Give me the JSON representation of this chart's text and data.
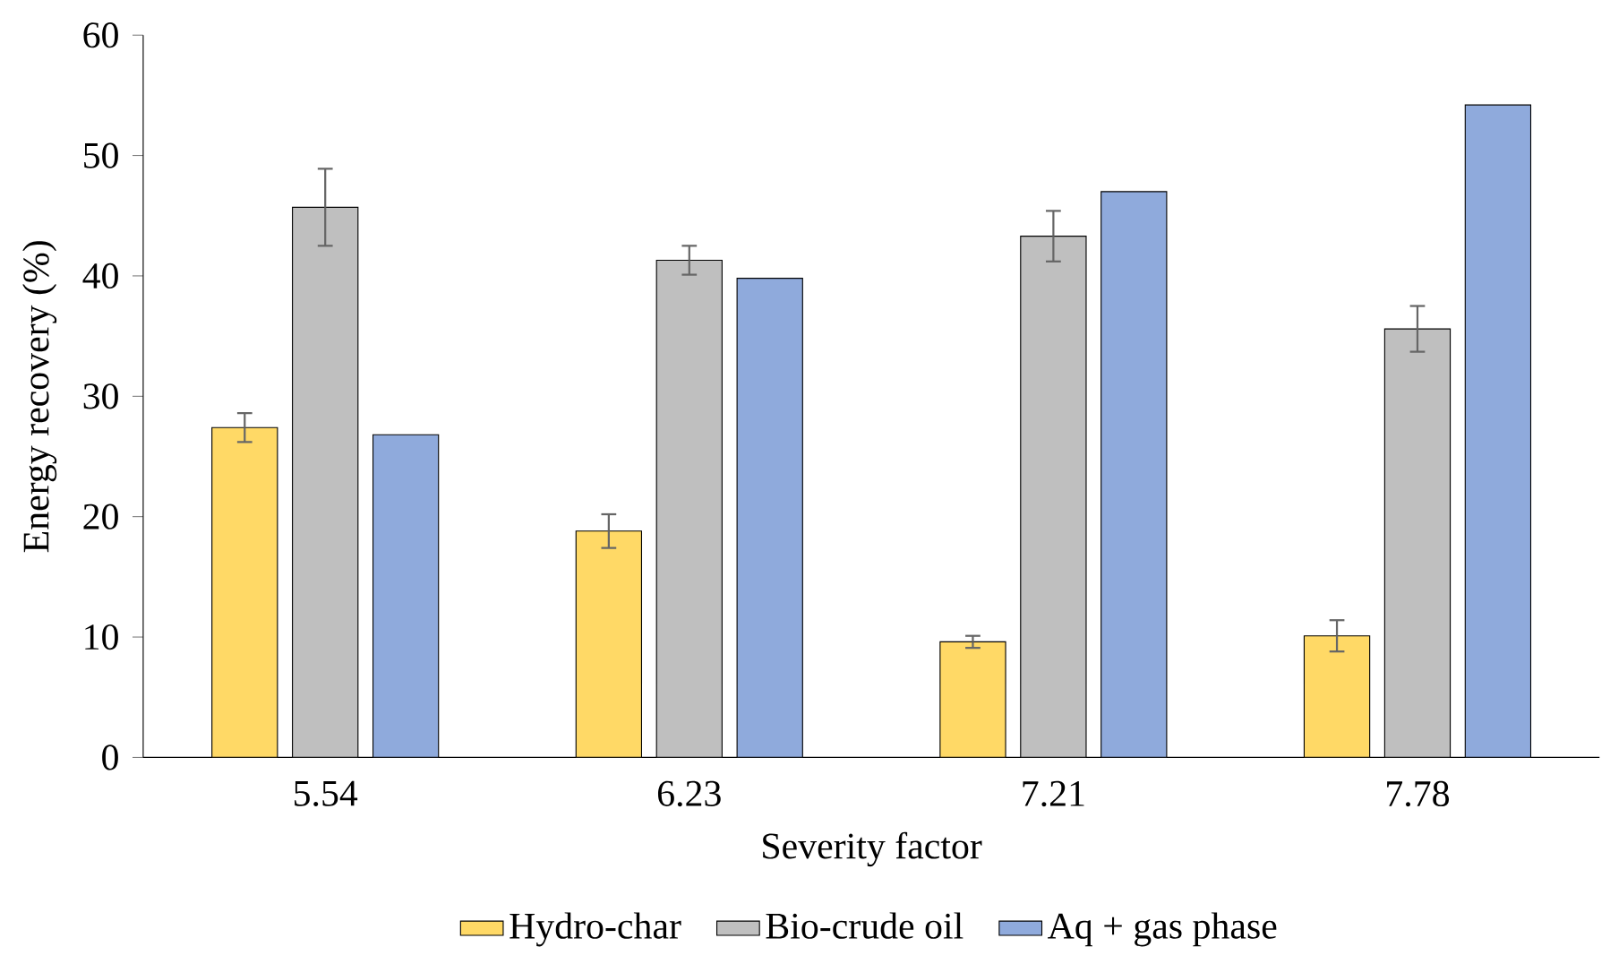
{
  "chart_data": {
    "type": "bar",
    "xlabel": "Severity factor",
    "ylabel": "Energy recovery (%)",
    "categories": [
      "5.54",
      "6.23",
      "7.21",
      "7.78"
    ],
    "series": [
      {
        "name": "Hydro-char",
        "color": "#ffd966",
        "values": [
          27.4,
          18.8,
          9.6,
          10.1
        ],
        "errors": [
          1.2,
          1.4,
          0.5,
          1.3
        ]
      },
      {
        "name": "Bio-crude oil",
        "color": "#bfbfbf",
        "values": [
          45.7,
          41.3,
          43.3,
          35.6
        ],
        "errors": [
          3.2,
          1.2,
          2.1,
          1.9
        ]
      },
      {
        "name": "Aq + gas phase",
        "color": "#8faadc",
        "values": [
          26.8,
          39.8,
          47.0,
          54.2
        ]
      }
    ],
    "ylim": [
      0,
      60
    ],
    "yticks": [
      0,
      10,
      20,
      30,
      40,
      50,
      60
    ],
    "grid": false,
    "legend": "bottom"
  }
}
